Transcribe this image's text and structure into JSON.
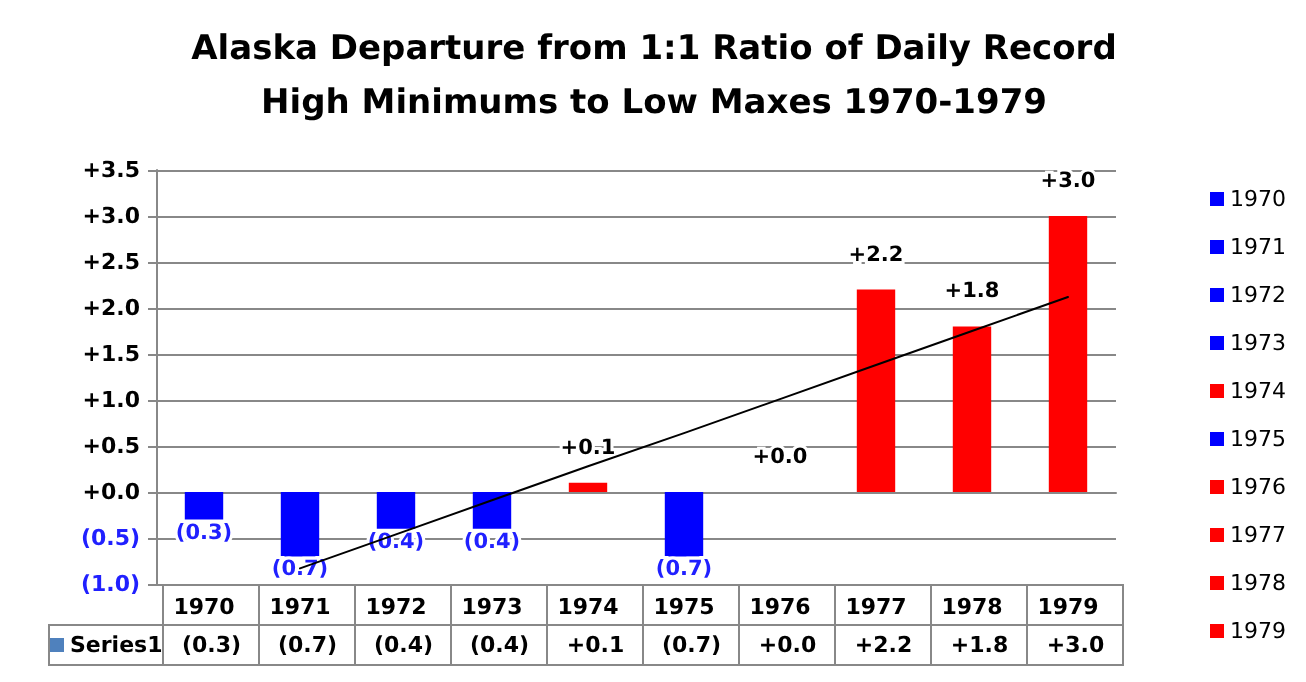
{
  "chart_data": {
    "type": "bar",
    "title": "Alaska Departure from 1:1 Ratio of Daily Record\nHigh Minimums to Low Maxes 1970-1979",
    "categories": [
      "1970",
      "1971",
      "1972",
      "1973",
      "1974",
      "1975",
      "1976",
      "1977",
      "1978",
      "1979"
    ],
    "series": [
      {
        "name": "Series1",
        "values": [
          -0.3,
          -0.7,
          -0.4,
          -0.4,
          0.1,
          -0.7,
          0.0,
          2.2,
          1.8,
          3.0
        ],
        "colors": [
          "#0000ff",
          "#0000ff",
          "#0000ff",
          "#0000ff",
          "#ff0000",
          "#0000ff",
          "#ff0000",
          "#ff0000",
          "#ff0000",
          "#ff0000"
        ],
        "value_labels": [
          "(0.3)",
          "(0.7)",
          "(0.4)",
          "(0.4)",
          "+0.1",
          "(0.7)",
          "+0.0",
          "+2.2",
          "+1.8",
          "+3.0"
        ]
      },
      {
        "type": "line",
        "values": [
          null,
          -0.83,
          -0.46,
          -0.09,
          0.28,
          0.64,
          1.01,
          1.38,
          1.75,
          2.12
        ],
        "color": "#000000",
        "marker": "none"
      }
    ],
    "ylim": [
      -1.0,
      3.5
    ],
    "yticks": [
      {
        "value": -1.0,
        "label": "(1.0)"
      },
      {
        "value": -0.5,
        "label": "(0.5)"
      },
      {
        "value": 0,
        "label": "+0.0"
      },
      {
        "value": 0.5,
        "label": "+0.5"
      },
      {
        "value": 1.0,
        "label": "+1.0"
      },
      {
        "value": 1.5,
        "label": "+1.5"
      },
      {
        "value": 2.0,
        "label": "+2.0"
      },
      {
        "value": 2.5,
        "label": "+2.5"
      },
      {
        "value": 3.0,
        "label": "+3.0"
      },
      {
        "value": 3.5,
        "label": "+3.5"
      }
    ],
    "grid": "y",
    "legend": "bottom left"
  }
}
